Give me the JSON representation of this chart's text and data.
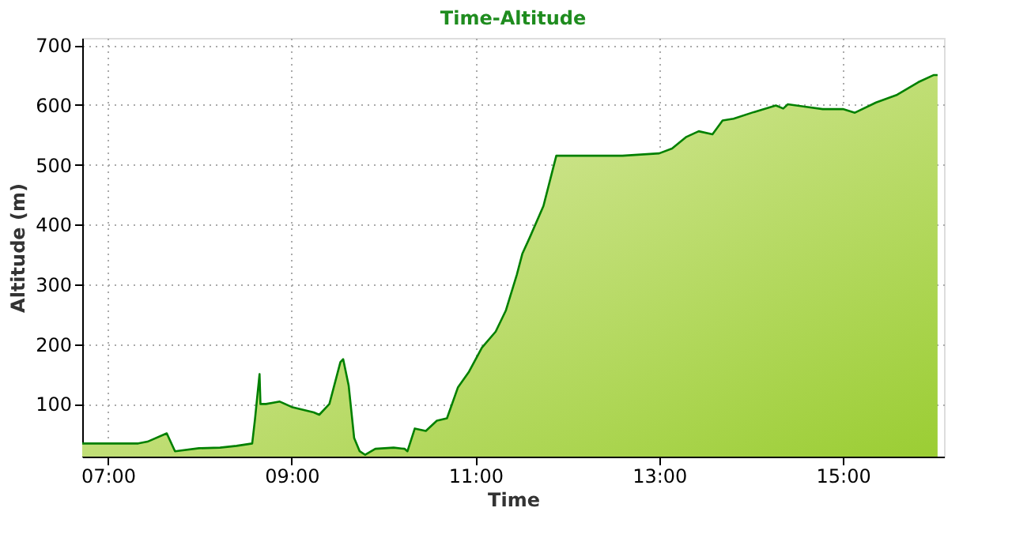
{
  "chart_data": {
    "type": "area",
    "title": "Time-Altitude",
    "xlabel": "Time",
    "ylabel": "Altitude (m)",
    "xlim": [
      6.72,
      16.1
    ],
    "ylim": [
      12,
      712
    ],
    "xticks": [
      {
        "value": 7,
        "label": "07:00"
      },
      {
        "value": 9,
        "label": "09:00"
      },
      {
        "value": 11,
        "label": "11:00"
      },
      {
        "value": 13,
        "label": "13:00"
      },
      {
        "value": 15,
        "label": "15:00"
      }
    ],
    "yticks": [
      100,
      200,
      300,
      400,
      500,
      600,
      700
    ],
    "grid": true,
    "series": [
      {
        "color": "#008000",
        "x": [
          6.72,
          7.33,
          7.43,
          7.64,
          7.73,
          7.99,
          8.22,
          8.4,
          8.57,
          8.6,
          8.65,
          8.66,
          8.72,
          8.87,
          9.0,
          9.24,
          9.3,
          9.41,
          9.53,
          9.56,
          9.62,
          9.68,
          9.74,
          9.8,
          9.91,
          10.11,
          10.23,
          10.26,
          10.34,
          10.46,
          10.58,
          10.69,
          10.81,
          10.93,
          11.07,
          11.22,
          11.33,
          11.45,
          11.51,
          11.59,
          11.74,
          11.88,
          12.6,
          13.0,
          13.14,
          13.29,
          13.43,
          13.58,
          13.69,
          13.81,
          14.03,
          14.27,
          14.35,
          14.4,
          14.78,
          15.0,
          15.13,
          15.36,
          15.59,
          15.82,
          15.99,
          16.03
        ],
        "values": [
          34,
          34,
          37,
          51,
          21,
          26,
          27,
          30,
          34,
          74,
          150,
          100,
          100,
          104,
          95,
          86,
          82,
          100,
          170,
          175,
          131,
          43,
          21,
          15,
          25,
          27,
          25,
          21,
          59,
          55,
          72,
          76,
          128,
          154,
          194,
          221,
          256,
          316,
          351,
          378,
          431,
          515,
          515,
          519,
          527,
          546,
          556,
          551,
          574,
          577,
          588,
          599,
          594,
          601,
          593,
          593,
          587,
          604,
          617,
          638,
          650,
          650
        ]
      }
    ]
  }
}
